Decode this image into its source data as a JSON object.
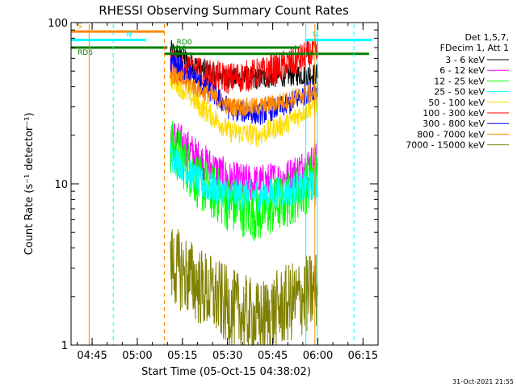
{
  "chart_data": {
    "type": "line",
    "title": "RHESSI Observing Summary Count Rates",
    "xlabel": "Start Time (05-Oct-15 04:38:02)",
    "ylabel": "Count Rate (s⁻¹ detector⁻¹)",
    "y_scale": "log",
    "ylim": [
      1,
      100
    ],
    "xlim": [
      "04:38",
      "06:20"
    ],
    "grid": false,
    "y_ticks": [
      {
        "value": 1,
        "label": "1"
      },
      {
        "value": 10,
        "label": "10"
      },
      {
        "value": 100,
        "label": "100"
      }
    ],
    "x_ticks": [
      {
        "value": "04:45",
        "label": "04:45"
      },
      {
        "value": "05:00",
        "label": "05:00"
      },
      {
        "value": "05:15",
        "label": "05:15"
      },
      {
        "value": "05:30",
        "label": "05:30"
      },
      {
        "value": "05:45",
        "label": "05:45"
      },
      {
        "value": "06:00",
        "label": "06:00"
      },
      {
        "value": "06:15",
        "label": "06:15"
      }
    ],
    "legend_header": [
      "Det 1,5,7,",
      "FDecim 1, Att 1"
    ],
    "legend_position": "right",
    "series": [
      {
        "name": "3 - 6 keV",
        "color": "#000000",
        "start": "05:11",
        "end": "06:00",
        "level": [
          67,
          52,
          45,
          45,
          47,
          48
        ],
        "spread": 0.07
      },
      {
        "name": "6 - 12 keV",
        "color": "#ff00ff",
        "start": "05:11",
        "end": "06:00",
        "level": [
          20,
          14,
          10.5,
          10,
          11,
          14
        ],
        "spread": 0.12
      },
      {
        "name": "12 - 25 keV",
        "color": "#00ff00",
        "start": "05:11",
        "end": "06:00",
        "level": [
          17,
          10,
          7.5,
          6.5,
          8,
          11
        ],
        "spread": 0.18
      },
      {
        "name": "25 - 50 keV",
        "color": "#00ffff",
        "start": "05:11",
        "end": "06:00",
        "level": [
          15,
          10,
          8.5,
          8.5,
          9,
          10
        ],
        "spread": 0.1
      },
      {
        "name": "50 - 100 keV",
        "color": "#ffdd00",
        "start": "05:11",
        "end": "06:00",
        "level": [
          45,
          30,
          21,
          20,
          24,
          32
        ],
        "spread": 0.07
      },
      {
        "name": "100 - 300 keV",
        "color": "#ff0000",
        "start": "05:11",
        "end": "06:00",
        "level": [
          55,
          48,
          45,
          48,
          55,
          65
        ],
        "spread": 0.1
      },
      {
        "name": "300 - 800 keV",
        "color": "#0000ff",
        "start": "05:11",
        "end": "06:00",
        "level": [
          58,
          42,
          29,
          27,
          31,
          40
        ],
        "spread": 0.07
      },
      {
        "name": "800 - 7000 keV",
        "color": "#ff8800",
        "start": "05:11",
        "end": "06:00",
        "level": [
          48,
          38,
          30,
          30,
          33,
          38
        ],
        "spread": 0.06
      },
      {
        "name": "7000 - 15000 keV",
        "color": "#808000",
        "start": "05:11",
        "end": "06:00",
        "level": [
          3.2,
          2.3,
          1.7,
          1.4,
          1.8,
          2.2
        ],
        "spread": 0.25
      }
    ],
    "flag_lines": [
      {
        "label": "S",
        "color": "#ff8800",
        "start": "04:38",
        "end": "05:09",
        "value": 88
      },
      {
        "label": "N",
        "color": "#00ffff",
        "start": "04:38",
        "end": "05:03",
        "value": 78
      },
      {
        "label": "N",
        "color": "#00ffff",
        "start": "05:56",
        "end": "06:18",
        "value": 78
      },
      {
        "label": "RD0",
        "color": "#008000",
        "start": "05:12",
        "end": "05:54",
        "value": 70
      },
      {
        "label": "RD6",
        "color": "#008000",
        "start": "04:38",
        "end": "05:10",
        "value": 70
      },
      {
        "label": "RD6",
        "color": "#008000",
        "start": "05:09",
        "end": "06:17",
        "value": 64
      }
    ],
    "vertical_lines": [
      {
        "time": "04:44",
        "color": "#ff8800",
        "style": "solid"
      },
      {
        "time": "04:52",
        "color": "#00ffff",
        "style": "dashed"
      },
      {
        "time": "05:09",
        "color": "#ff8800",
        "style": "dashed"
      },
      {
        "time": "05:56",
        "color": "#00ffff",
        "style": "solid"
      },
      {
        "time": "05:59",
        "color": "#ff8800",
        "style": "solid"
      },
      {
        "time": "05:59",
        "color": "#00ffff",
        "style": "solid"
      },
      {
        "time": "06:12",
        "color": "#00ffff",
        "style": "dashed"
      }
    ]
  },
  "footer": {
    "timestamp": "31-Oct-2021 21:55"
  }
}
